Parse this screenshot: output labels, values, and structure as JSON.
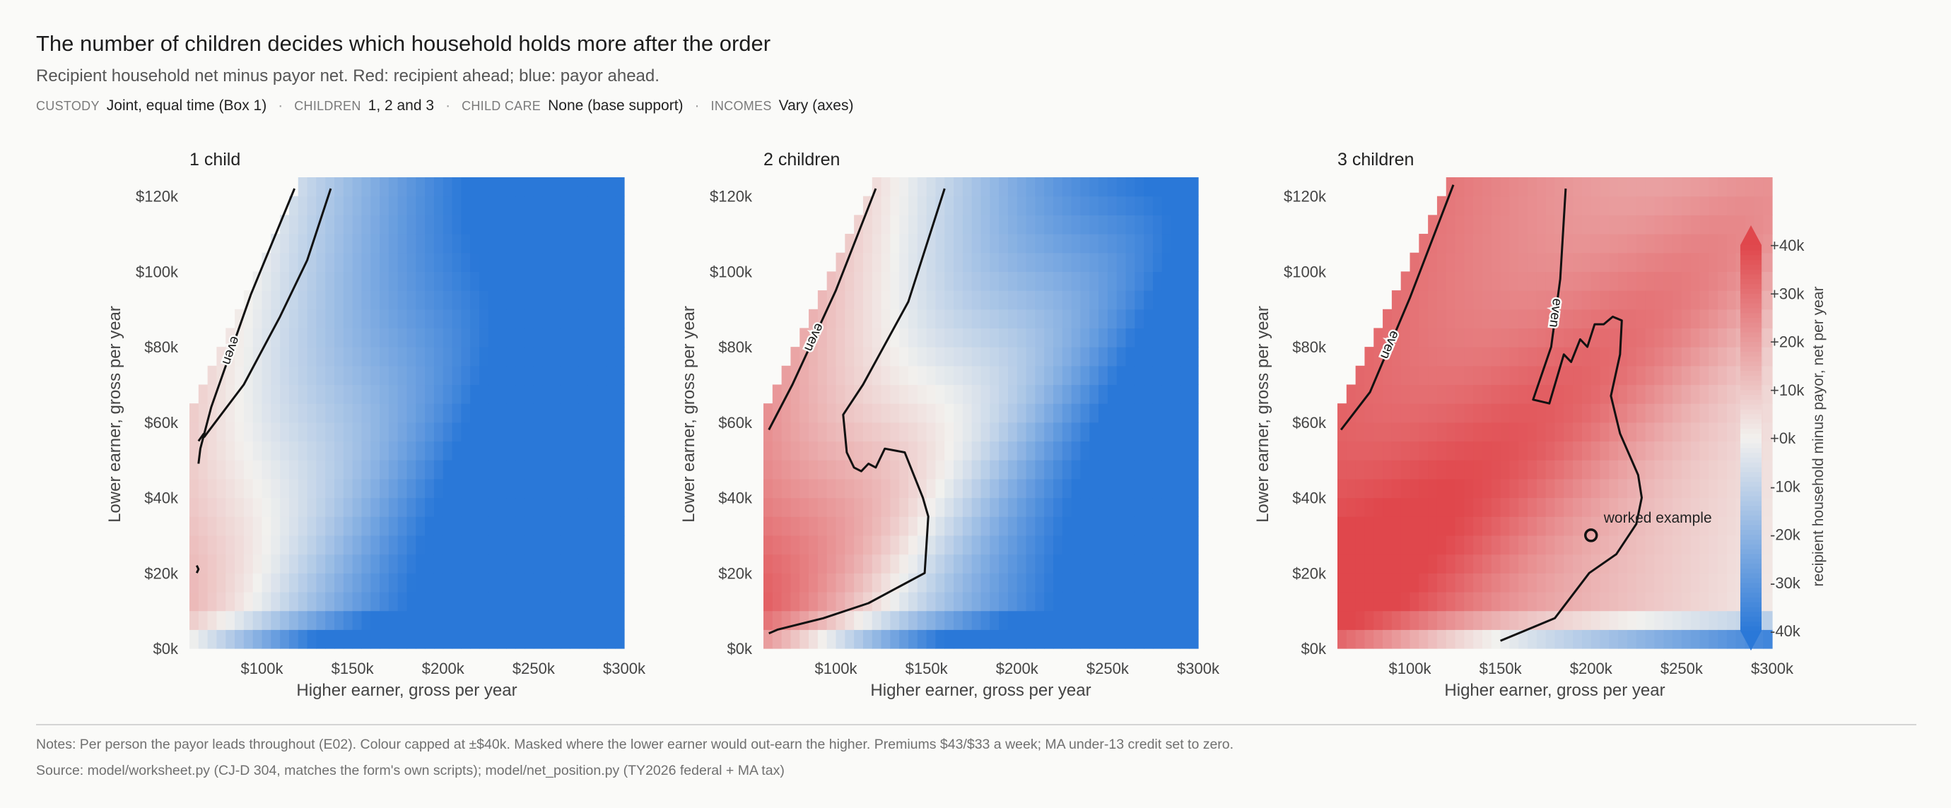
{
  "header": {
    "title": "The number of children decides which household holds more after the order",
    "subtitle": "Recipient household net minus payor net. Red: recipient ahead; blue: payor ahead.",
    "meta": [
      {
        "key": "CUSTODY",
        "value": "Joint, equal time (Box 1)"
      },
      {
        "key": "CHILDREN",
        "value": "1, 2 and 3"
      },
      {
        "key": "CHILD CARE",
        "value": "None (base support)"
      },
      {
        "key": "INCOMES",
        "value": "Vary (axes)"
      }
    ]
  },
  "footer": {
    "notes": "Notes: Per person the payor leads throughout (E02). Colour capped at ±$40k. Masked where the lower earner would out-earn the higher. Premiums $43/$33 a week; MA under-13 credit set to zero.",
    "source": "Source: model/worksheet.py (CJ-D 304, matches the form's own scripts); model/net_position.py (TY2026 federal + MA tax)"
  },
  "colors": {
    "positive": "#e0474c",
    "neutral": "#f2f1ee",
    "negative": "#2a78d8",
    "contour": "#111111",
    "mask": "#fafaf8"
  },
  "chart_data": [
    {
      "type": "heatmap",
      "title": "1 child",
      "xlabel": "Higher earner, gross per year",
      "ylabel": "Lower earner, gross per year",
      "xlim": [
        60000,
        300000
      ],
      "ylim": [
        0,
        125000
      ],
      "xticks": [
        100000,
        150000,
        200000,
        250000,
        300000
      ],
      "xtick_labels": [
        "$100k",
        "$150k",
        "$200k",
        "$250k",
        "$300k"
      ],
      "yticks": [
        0,
        20000,
        40000,
        60000,
        80000,
        100000,
        120000
      ],
      "ytick_labels": [
        "$0k",
        "$20k",
        "$40k",
        "$60k",
        "$80k",
        "$100k",
        "$120k"
      ],
      "grid": {
        "x_step": 5000,
        "y_step": 5000
      },
      "masked_where": "lower earner > higher earner",
      "value_model": {
        "a": 2.8,
        "b": -0.37,
        "c": 0.1,
        "d": 0.36,
        "e": 10,
        "blue_lead": 14,
        "blue_cut": 25000
      },
      "contours": [
        {
          "label": "even",
          "points": [
            [
              118000,
              122000
            ],
            [
              94000,
              94000
            ],
            [
              72000,
              64000
            ],
            [
              66000,
              53000
            ],
            [
              65000,
              49000
            ]
          ]
        },
        {
          "label": "",
          "points": [
            [
              68000,
              57000
            ],
            [
              65000,
              55000
            ]
          ]
        },
        {
          "label": "",
          "points": [
            [
              64000,
              22000
            ],
            [
              65000,
              21000
            ],
            [
              64000,
              20000
            ]
          ]
        },
        {
          "label": "",
          "points": [
            [
              138000,
              122000
            ],
            [
              125000,
              103000
            ],
            [
              110000,
              88000
            ],
            [
              90000,
              70000
            ],
            [
              68000,
              56000
            ]
          ]
        }
      ]
    },
    {
      "type": "heatmap",
      "title": "2 children",
      "xlabel": "Higher earner, gross per year",
      "ylabel": "Lower earner, gross per year",
      "xlim": [
        60000,
        300000
      ],
      "ylim": [
        0,
        125000
      ],
      "xticks": [
        100000,
        150000,
        200000,
        250000,
        300000
      ],
      "xtick_labels": [
        "$100k",
        "$150k",
        "$200k",
        "$250k",
        "$300k"
      ],
      "yticks": [
        0,
        20000,
        40000,
        60000,
        80000,
        100000,
        120000
      ],
      "ytick_labels": [
        "$0k",
        "$20k",
        "$40k",
        "$60k",
        "$80k",
        "$100k",
        "$120k"
      ],
      "grid": {
        "x_step": 5000,
        "y_step": 5000
      },
      "masked_where": "lower earner > higher earner",
      "value_model": {
        "a": 18,
        "b": -0.37,
        "c": 0.08,
        "d": 0.36,
        "e": 16,
        "blue_lead": 14,
        "blue_cut": 25000
      },
      "contours": [
        {
          "label": "even",
          "points": [
            [
              122000,
              122000
            ],
            [
              100000,
              95000
            ],
            [
              76000,
              70000
            ],
            [
              63000,
              58000
            ]
          ]
        },
        {
          "label": "",
          "points": [
            [
              160000,
              122000
            ],
            [
              140000,
              92000
            ],
            [
              115000,
              70000
            ],
            [
              104000,
              62000
            ],
            [
              106000,
              52000
            ],
            [
              110000,
              48000
            ],
            [
              114000,
              47000
            ],
            [
              118000,
              49000
            ],
            [
              122000,
              48000
            ],
            [
              127000,
              53000
            ],
            [
              138000,
              52000
            ],
            [
              148000,
              40000
            ],
            [
              151000,
              35000
            ],
            [
              149000,
              20000
            ],
            [
              118000,
              12000
            ],
            [
              93000,
              8000
            ],
            [
              68000,
              5000
            ],
            [
              63000,
              4000
            ]
          ]
        }
      ]
    },
    {
      "type": "heatmap",
      "title": "3 children",
      "xlabel": "Higher earner, gross per year",
      "ylabel": "Lower earner, gross per year",
      "xlim": [
        60000,
        300000
      ],
      "ylim": [
        0,
        125000
      ],
      "xticks": [
        100000,
        150000,
        200000,
        250000,
        300000
      ],
      "xtick_labels": [
        "$100k",
        "$150k",
        "$200k",
        "$250k",
        "$300k"
      ],
      "yticks": [
        0,
        20000,
        40000,
        60000,
        80000,
        100000,
        120000
      ],
      "ytick_labels": [
        "$0k",
        "$20k",
        "$40k",
        "$60k",
        "$80k",
        "$100k",
        "$120k"
      ],
      "grid": {
        "x_step": 5000,
        "y_step": 5000
      },
      "masked_where": "lower earner > higher earner",
      "value_model": {
        "a": 30,
        "b": -0.12,
        "c": 0.05,
        "d": 0.23,
        "e": 16,
        "blue_lead": 14,
        "blue_cut": 25000
      },
      "contours": [
        {
          "label": "even",
          "points": [
            [
              124000,
              123000
            ],
            [
              100000,
              93000
            ],
            [
              78000,
              68000
            ],
            [
              62000,
              58000
            ]
          ]
        },
        {
          "label": "even",
          "points": [
            [
              186000,
              122000
            ],
            [
              183000,
              98000
            ],
            [
              178000,
              80000
            ],
            [
              168000,
              66000
            ],
            [
              177000,
              65000
            ],
            [
              185000,
              78000
            ],
            [
              189000,
              76000
            ],
            [
              194000,
              82000
            ],
            [
              198000,
              80000
            ],
            [
              202000,
              86000
            ],
            [
              207000,
              86000
            ],
            [
              212000,
              88000
            ],
            [
              217000,
              87000
            ],
            [
              216000,
              78000
            ],
            [
              211000,
              67000
            ],
            [
              216000,
              57000
            ],
            [
              226000,
              46000
            ],
            [
              228000,
              40000
            ],
            [
              225000,
              33000
            ],
            [
              214000,
              25000
            ],
            [
              199000,
              20000
            ],
            [
              180000,
              8000
            ],
            [
              165000,
              5000
            ],
            [
              150000,
              2000
            ]
          ]
        }
      ],
      "annotation": {
        "label": "worked example",
        "x": 200000,
        "y": 30000
      },
      "colorbar": {
        "label": "recipient household minus payor, net per year",
        "ticks": [
          40000,
          30000,
          20000,
          10000,
          0,
          -10000,
          -20000,
          -30000,
          -40000
        ],
        "tick_labels": [
          "+40k",
          "+30k",
          "+20k",
          "+10k",
          "+0k",
          "-10k",
          "-20k",
          "-30k",
          "-40k"
        ],
        "range": [
          -40000,
          40000
        ]
      }
    }
  ]
}
